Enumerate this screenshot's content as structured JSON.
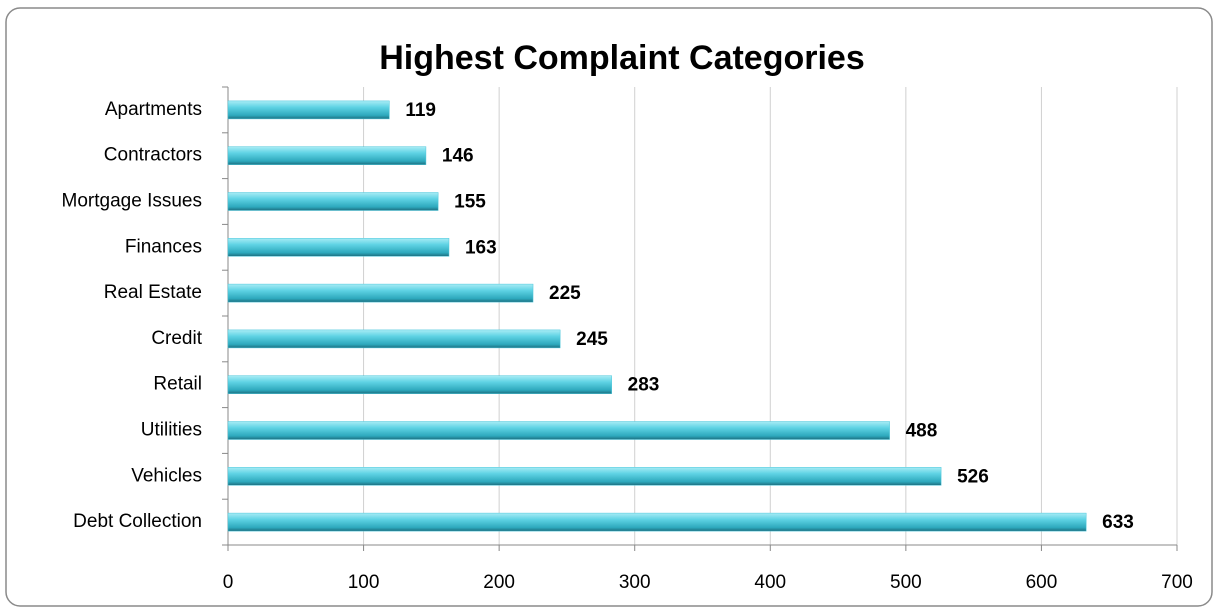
{
  "chart_data": {
    "type": "bar",
    "orientation": "horizontal",
    "title": "Highest Complaint Categories",
    "categories": [
      "Apartments",
      "Contractors",
      "Mortgage Issues",
      "Finances",
      "Real Estate",
      "Credit",
      "Retail",
      "Utilities",
      "Vehicles",
      "Debt Collection"
    ],
    "values": [
      119,
      146,
      155,
      163,
      225,
      245,
      283,
      488,
      526,
      633
    ],
    "color": "#4bc6da",
    "xlim": [
      0,
      700
    ],
    "xticks": [
      0,
      100,
      200,
      300,
      400,
      500,
      600,
      700
    ],
    "grid": true
  }
}
